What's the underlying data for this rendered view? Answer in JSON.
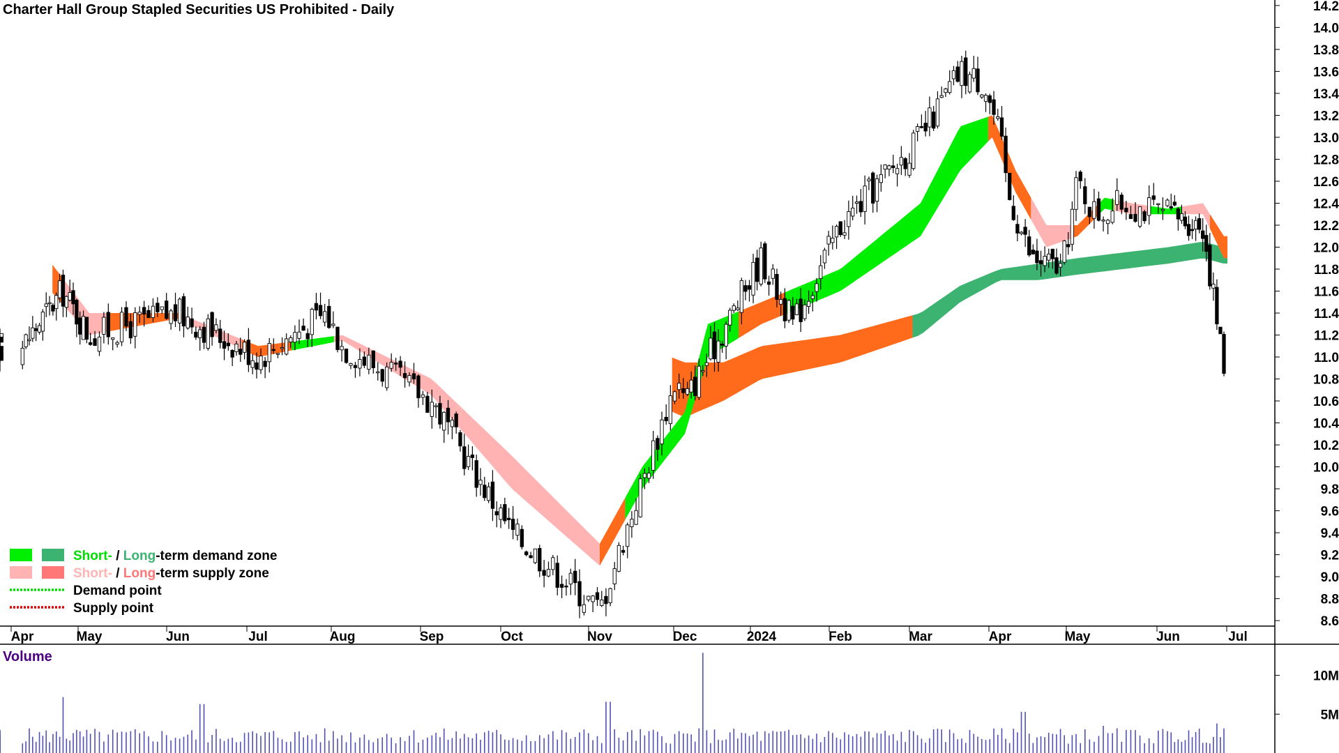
{
  "chart_data": {
    "type": "candlestick",
    "title": "Charter Hall Group Stapled Securities US Prohibited - Daily",
    "x_labels": [
      "Apr",
      "May",
      "Jun",
      "Jul",
      "Aug",
      "Sep",
      "Oct",
      "Nov",
      "Dec",
      "2024",
      "Feb",
      "Mar",
      "Apr",
      "May",
      "Jun",
      "Jul"
    ],
    "y_ticks": [
      8.6,
      8.8,
      9.0,
      9.2,
      9.4,
      9.6,
      9.8,
      10.0,
      10.2,
      10.4,
      10.6,
      10.8,
      11.0,
      11.2,
      11.4,
      11.6,
      11.8,
      12.0,
      12.2,
      12.4,
      12.6,
      12.8,
      13.0,
      13.2,
      13.4,
      13.6,
      13.8,
      14.0,
      14.2
    ],
    "y_tick_labels": [
      "8.6",
      "8.8",
      "9.0",
      "9.2",
      "9.4",
      "9.6",
      "9.8",
      "10.0",
      "10.2",
      "10.4",
      "10.6",
      "10.8",
      "11.0",
      "11.2",
      "11.4",
      "11.6",
      "11.8",
      "12.0",
      "12.2",
      "12.4",
      "12.6",
      "12.8",
      "13.0",
      "13.2",
      "13.4",
      "13.6",
      "13.8",
      "14.0",
      "14.2"
    ],
    "ylim": [
      8.55,
      14.25
    ],
    "price_anchors": {
      "x_month_index": [
        0,
        0.6,
        1,
        2,
        3,
        3.8,
        4,
        5,
        6,
        7,
        7.9,
        8,
        9,
        9.4,
        10,
        11,
        11.5,
        11.8,
        12,
        12.1,
        12.4,
        12.8,
        13,
        13.2,
        13.5,
        14,
        14.5,
        14.8
      ],
      "close": [
        11.1,
        11.6,
        11.2,
        11.4,
        11.0,
        11.4,
        11.1,
        10.6,
        9.4,
        8.7,
        10.8,
        10.6,
        11.9,
        11.3,
        12.2,
        13.0,
        13.6,
        13.5,
        13.0,
        12.5,
        11.9,
        11.8,
        12.6,
        12.3,
        12.4,
        12.3,
        12.2,
        10.9
      ]
    },
    "short_term_band": {
      "x_month_index": [
        0,
        1,
        2,
        3,
        4,
        5,
        6,
        7,
        7.5,
        8,
        8.3,
        9,
        10,
        11,
        11.5,
        11.9,
        12.2,
        12.6,
        13,
        13.3,
        13.6,
        14,
        14.5,
        14.8
      ],
      "upper": [
        12.2,
        11.4,
        11.4,
        11.1,
        11.2,
        10.8,
        10.1,
        9.3,
        10.0,
        10.5,
        11.3,
        11.5,
        11.8,
        12.4,
        13.1,
        13.2,
        12.7,
        12.2,
        12.2,
        12.45,
        12.4,
        12.35,
        12.4,
        12.1
      ],
      "lower": [
        11.9,
        11.2,
        11.35,
        11.0,
        11.15,
        10.65,
        9.8,
        9.1,
        9.8,
        10.3,
        11.0,
        11.3,
        11.6,
        12.1,
        12.7,
        13.0,
        12.5,
        12.0,
        12.1,
        12.35,
        12.3,
        12.3,
        12.3,
        11.9
      ]
    },
    "long_term_band": {
      "x_month_index": [
        0,
        1,
        2,
        3,
        4,
        5,
        6,
        7,
        8,
        8.5,
        9,
        10,
        11,
        11.5,
        12,
        12.5,
        13,
        13.5,
        14,
        14.5,
        14.8
      ],
      "upper": [
        13.25,
        12.9,
        12.65,
        12.4,
        12.2,
        12.0,
        11.7,
        11.25,
        10.95,
        10.95,
        11.1,
        11.2,
        11.4,
        11.65,
        11.8,
        11.85,
        11.9,
        11.95,
        12.0,
        12.05,
        12.0
      ],
      "lower": [
        12.95,
        12.55,
        12.3,
        12.05,
        11.85,
        11.65,
        11.35,
        10.8,
        10.45,
        10.6,
        10.8,
        10.95,
        11.2,
        11.5,
        11.7,
        11.7,
        11.75,
        11.8,
        11.85,
        11.9,
        11.85
      ]
    },
    "zone_colors": {
      "short_demand": "#00ee00",
      "long_demand": "#3cb371",
      "short_supply": "#ffb3b3",
      "long_supply": "#ff7777",
      "transition": "#ff6b1a"
    },
    "candle_colors": {
      "up": "#ffffff",
      "down": "#000000",
      "wick": "#000000"
    },
    "volume": {
      "label": "Volume",
      "y_tick_labels": [
        "10M",
        "5M"
      ],
      "y_ticks": [
        10000000,
        5000000
      ],
      "bar_color": "#5050b4",
      "spikes_millions": [
        {
          "x_month_index": 0.6,
          "v": 7.2
        },
        {
          "x_month_index": 2.3,
          "v": 6.3
        },
        {
          "x_month_index": 7.1,
          "v": 6.6
        },
        {
          "x_month_index": 8.25,
          "v": 12.9
        },
        {
          "x_month_index": 12.3,
          "v": 5.3
        },
        {
          "x_month_index": 13.3,
          "v": 3.5
        },
        {
          "x_month_index": 14.7,
          "v": 3.8
        }
      ]
    },
    "legend": {
      "placement": "bottom-left",
      "rows": [
        {
          "parts": [
            "Short-",
            " / ",
            "Long",
            "-term demand zone"
          ],
          "swatches": [
            "#00ee00",
            "#3cb371"
          ],
          "part_colors": [
            "#00dd00",
            "#000000",
            "#3cb371",
            "#000000"
          ]
        },
        {
          "parts": [
            "Short-",
            " / ",
            "Long",
            "-term supply zone"
          ],
          "swatches": [
            "#ffb3b3",
            "#ff7777"
          ],
          "part_colors": [
            "#ffb3b3",
            "#000000",
            "#ff7777",
            "#000000"
          ]
        },
        {
          "parts": [
            "Demand point"
          ],
          "line_color": "#00dd00"
        },
        {
          "parts": [
            "Supply point"
          ],
          "line_color": "#dd0000"
        }
      ]
    }
  }
}
